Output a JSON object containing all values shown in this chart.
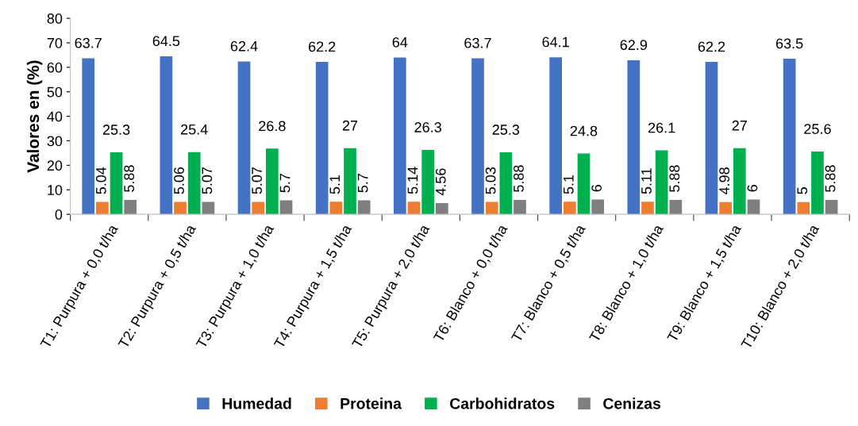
{
  "chart_data": {
    "type": "bar",
    "ylabel": "Valores en (%)",
    "categories": [
      "T1: Purpura + 0,0 t/ha",
      "T2: Purpura + 0,5 t/ha",
      "T3: Purpura + 1,0 t/ha",
      "T4: Purpura + 1,5 t/ha",
      "T5: Purpura + 2,0 t/ha",
      "T6: Blanco + 0,0 t/ha",
      "T7: Blanco + 0,5 t/ha",
      "T8: Blanco + 1,0 t/ha",
      "T9: Blanco + 1,5 t/ha",
      "T10: Blanco + 2,0 t/ha"
    ],
    "series": [
      {
        "name": "Humedad",
        "color": "#4472c4",
        "values": [
          63.7,
          64.5,
          62.4,
          62.2,
          64,
          63.7,
          64.1,
          62.9,
          62.2,
          63.5
        ]
      },
      {
        "name": "Proteina",
        "color": "#ed7d31",
        "values": [
          5.04,
          5.06,
          5.07,
          5.1,
          5.14,
          5.03,
          5.1,
          5.11,
          4.98,
          5
        ]
      },
      {
        "name": "Carbohidratos",
        "color": "#00b050",
        "values": [
          25.3,
          25.4,
          26.8,
          27,
          26.3,
          25.3,
          24.8,
          26.1,
          27,
          25.6
        ]
      },
      {
        "name": "Cenizas",
        "color": "#7f7f7f",
        "values": [
          5.88,
          5.07,
          5.7,
          5.7,
          4.56,
          5.88,
          6,
          5.88,
          6,
          5.88
        ]
      }
    ],
    "ylim": [
      0,
      80
    ],
    "yticks": [
      0,
      10,
      20,
      30,
      40,
      50,
      60,
      70,
      80
    ],
    "data_labels": true,
    "legend": "bottom",
    "grid": false
  }
}
